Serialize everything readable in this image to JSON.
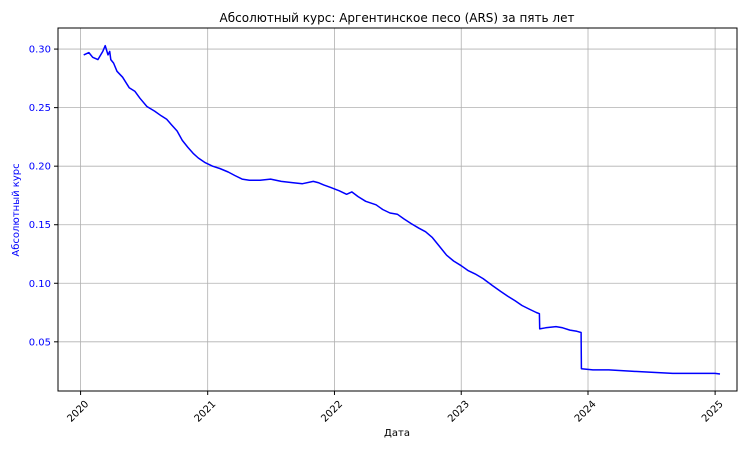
{
  "chart_data": {
    "type": "line",
    "title": "Абсолютный курс: Аргентинское песо (ARS) за пять лет",
    "xlabel": "Дата",
    "ylabel": "Абсолютный курс",
    "x_ticks": [
      "2020",
      "2021",
      "2022",
      "2023",
      "2024",
      "2025"
    ],
    "y_ticks": [
      "0.05",
      "0.10",
      "0.15",
      "0.20",
      "0.25",
      "0.30"
    ],
    "xlim": [
      "2019-10-28",
      "2025-03-05"
    ],
    "ylim": [
      0.008,
      0.318
    ],
    "grid": true,
    "line_color": "#0000ff",
    "ylabel_color": "#0000ff",
    "series": [
      {
        "x": [
          "2020-01-10",
          "2020-01-25",
          "2020-02-05",
          "2020-02-20",
          "2020-03-05",
          "2020-03-12",
          "2020-03-20",
          "2020-03-25",
          "2020-03-28",
          "2020-04-05",
          "2020-04-15",
          "2020-05-01",
          "2020-05-20",
          "2020-06-05",
          "2020-06-20",
          "2020-07-10",
          "2020-08-01",
          "2020-08-20",
          "2020-09-05",
          "2020-09-20",
          "2020-10-05",
          "2020-10-20",
          "2020-11-05",
          "2020-11-20",
          "2020-12-05",
          "2020-12-25",
          "2021-01-15",
          "2021-02-05",
          "2021-03-01",
          "2021-03-20",
          "2021-04-10",
          "2021-05-01",
          "2021-06-01",
          "2021-07-01",
          "2021-08-01",
          "2021-09-01",
          "2021-10-01",
          "2021-11-01",
          "2021-11-15",
          "2021-12-01",
          "2021-12-20",
          "2022-01-15",
          "2022-02-05",
          "2022-02-20",
          "2022-03-10",
          "2022-04-01",
          "2022-05-01",
          "2022-05-20",
          "2022-06-10",
          "2022-07-01",
          "2022-07-20",
          "2022-08-10",
          "2022-09-01",
          "2022-09-20",
          "2022-10-10",
          "2022-11-01",
          "2022-11-20",
          "2022-12-10",
          "2023-01-01",
          "2023-01-20",
          "2023-02-10",
          "2023-03-05",
          "2023-04-01",
          "2023-04-25",
          "2023-05-15",
          "2023-06-05",
          "2023-06-25",
          "2023-07-15",
          "2023-08-05",
          "2023-08-14",
          "2023-08-15",
          "2023-09-01",
          "2023-10-01",
          "2023-10-20",
          "2023-11-10",
          "2023-11-30",
          "2023-12-12",
          "2023-12-13",
          "2024-01-15",
          "2024-03-01",
          "2024-05-01",
          "2024-07-01",
          "2024-09-01",
          "2024-11-01",
          "2025-01-01",
          "2025-01-15"
        ],
        "y": [
          0.295,
          0.297,
          0.293,
          0.291,
          0.298,
          0.303,
          0.295,
          0.298,
          0.291,
          0.288,
          0.281,
          0.276,
          0.267,
          0.264,
          0.258,
          0.251,
          0.247,
          0.243,
          0.24,
          0.235,
          0.23,
          0.222,
          0.216,
          0.211,
          0.207,
          0.203,
          0.2,
          0.198,
          0.195,
          0.192,
          0.189,
          0.188,
          0.188,
          0.189,
          0.187,
          0.186,
          0.185,
          0.187,
          0.186,
          0.184,
          0.182,
          0.179,
          0.176,
          0.178,
          0.174,
          0.17,
          0.167,
          0.163,
          0.16,
          0.159,
          0.155,
          0.151,
          0.147,
          0.144,
          0.139,
          0.131,
          0.124,
          0.119,
          0.115,
          0.111,
          0.108,
          0.104,
          0.098,
          0.093,
          0.089,
          0.085,
          0.081,
          0.078,
          0.075,
          0.074,
          0.061,
          0.062,
          0.063,
          0.062,
          0.06,
          0.059,
          0.058,
          0.027,
          0.026,
          0.026,
          0.025,
          0.024,
          0.023,
          0.023,
          0.023,
          0.0225
        ]
      }
    ]
  }
}
